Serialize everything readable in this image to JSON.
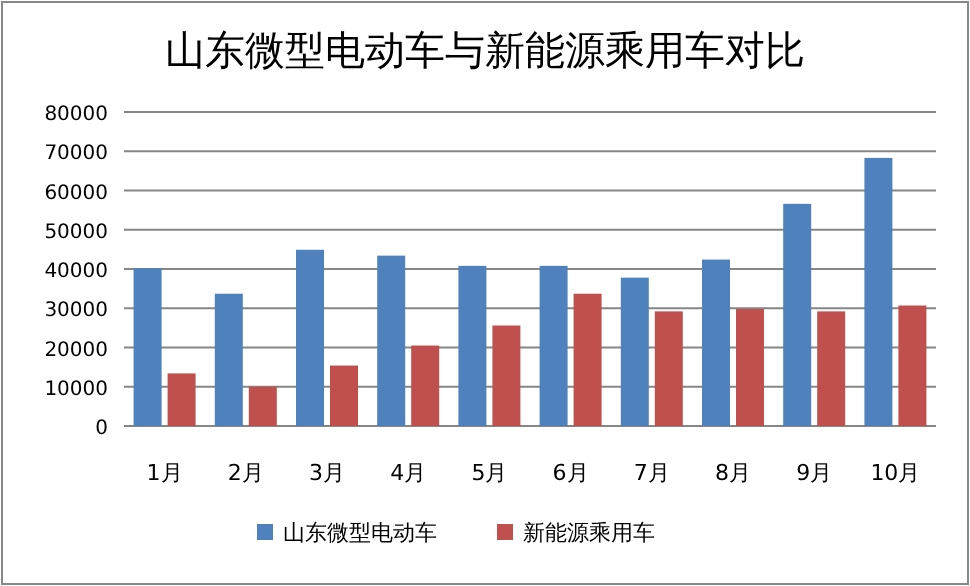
{
  "chart_data": {
    "type": "bar",
    "title": "山东微型电动车与新能源乘用车对比",
    "categories": [
      "1月",
      "2月",
      "3月",
      "4月",
      "5月",
      "6月",
      "7月",
      "8月",
      "9月",
      "10月"
    ],
    "series": [
      {
        "name": "山东微型电动车",
        "color": "#4f81bd",
        "values": [
          40200,
          33700,
          44900,
          43400,
          40800,
          40800,
          37800,
          42400,
          56600,
          68300
        ]
      },
      {
        "name": "新能源乘用车",
        "color": "#c0504d",
        "values": [
          13400,
          10000,
          15400,
          20500,
          25600,
          33700,
          29200,
          29800,
          29200,
          30700
        ]
      }
    ],
    "ylim": [
      0,
      80000
    ],
    "yticks": [
      0,
      10000,
      20000,
      30000,
      40000,
      50000,
      60000,
      70000,
      80000
    ],
    "grid": "y",
    "legend": "bottom"
  }
}
